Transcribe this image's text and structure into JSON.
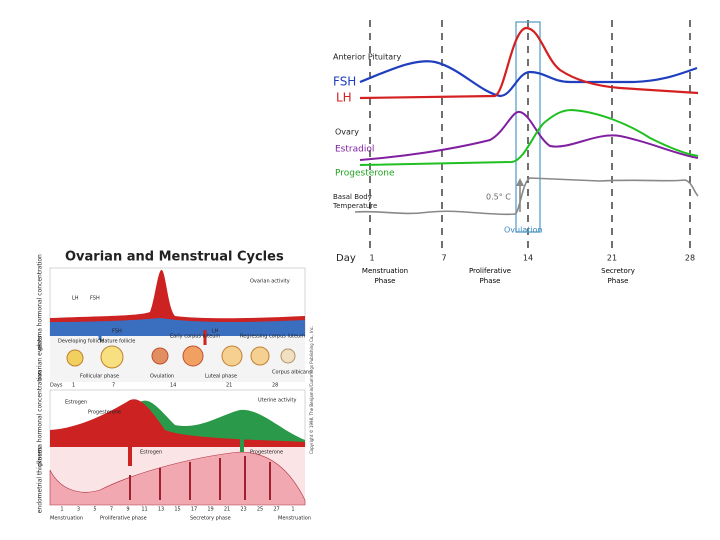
{
  "top_panel": {
    "pituitary_label": "Anterior Pituitary",
    "fsh_label": "FSH",
    "lh_label": "LH",
    "ovary_label": "Ovary",
    "estradiol_label": "Estradiol",
    "progesterone_label": "Progesterone",
    "temperature_label": "Basal Body Temperature",
    "temperature_shift": "0.5° C",
    "ovulation_label": "Ovulation",
    "day_label": "Day",
    "days": [
      "1",
      "7",
      "14",
      "21",
      "28"
    ],
    "phases": [
      "Menstruation Phase",
      "Proliferative Phase",
      "Secretory Phase"
    ]
  },
  "figure": {
    "title": "Ovarian and Menstrual Cycles",
    "axis_labels": [
      "plasma hormonal concentration",
      "ovarian events",
      "plasma hormonal concentration",
      "endometrial thickness"
    ],
    "ovarian_activity": "Ovarian activity",
    "lh": "LH",
    "fsh": "FSH",
    "fsh_arrow": "FSH",
    "lh_arrow": "LH",
    "follicles": [
      "Developing follicle",
      "Mature follicle",
      "Early corpus luteum",
      "Regressing corpus luteum",
      "Corpus albicans"
    ],
    "phases": [
      "Follicular phase",
      "Ovulation",
      "Luteal phase"
    ],
    "days_label": "Days",
    "days": [
      "1",
      "7",
      "14",
      "21",
      "28"
    ],
    "estrogen": "Estrogen",
    "progesterone": "Progesterone",
    "uterine_activity": "Uterine activity",
    "estrogen_arrow": "Estrogen",
    "progesterone_arrow": "Progesterone",
    "bottom_days": [
      "1",
      "3",
      "5",
      "7",
      "9",
      "11",
      "13",
      "15",
      "17",
      "19",
      "21",
      "23",
      "25",
      "27",
      "1"
    ],
    "bottom_phases": [
      "Menstruation",
      "Proliferative phase",
      "Secretory phase",
      "Menstruation"
    ],
    "credit": "Copyright © 1998, The Benjamin/Cummings Publishing Co., Inc."
  }
}
